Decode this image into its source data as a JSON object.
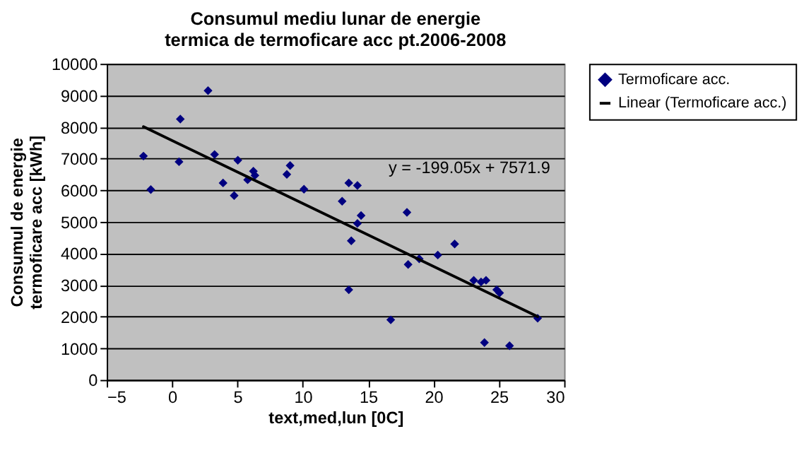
{
  "chart_data": {
    "type": "scatter",
    "title": "Consumul mediu lunar de energie termica de termoficare acc pt.2006-2008",
    "xlabel": "text,med,lun [0C]",
    "ylabel": "Consumul de energie termoficare acc [kWh]",
    "series": [
      {
        "name": "Termoficare acc.",
        "color": "#000080",
        "marker": "diamond",
        "x": [
          -2.19,
          -1.63,
          0.63,
          0.53,
          2.75,
          3.25,
          3.9,
          4.75,
          5.03,
          5.78,
          6.22,
          6.34,
          8.78,
          9.03,
          10.09,
          13.01,
          13.52,
          14.18,
          14.46,
          14.18,
          13.71,
          13.52,
          16.73,
          17.97,
          18.06,
          18.91,
          20.33,
          21.62,
          23.08,
          23.64,
          24.02,
          24.84,
          25.06,
          23.9,
          25.82,
          27.97
        ],
        "values": [
          7080,
          6020,
          8250,
          6900,
          9150,
          7130,
          6230,
          5830,
          6950,
          6330,
          6600,
          6470,
          6500,
          6780,
          6030,
          5650,
          6230,
          6150,
          5200,
          4950,
          4400,
          2850,
          1900,
          5300,
          3650,
          3830,
          3950,
          4300,
          3150,
          3100,
          3150,
          2850,
          2750,
          1180,
          1080,
          1950
        ]
      },
      {
        "name": "Linear (Termoficare acc.)",
        "type": "line",
        "color": "#000000",
        "marker": "none",
        "line_style": "solid",
        "x": [
          -2.19,
          27.97
        ],
        "values": [
          8008,
          2004
        ]
      }
    ],
    "annotations": [
      "y = -199.05x + 7571.9"
    ],
    "xlim": [
      -5,
      30
    ],
    "xticks": [
      -5,
      0,
      5,
      10,
      15,
      20,
      25,
      30
    ],
    "ylim": [
      0,
      10000
    ],
    "yticks": [
      0,
      1000,
      2000,
      3000,
      4000,
      5000,
      6000,
      7000,
      8000,
      9000,
      10000
    ],
    "grid": "y",
    "legend": "right"
  }
}
